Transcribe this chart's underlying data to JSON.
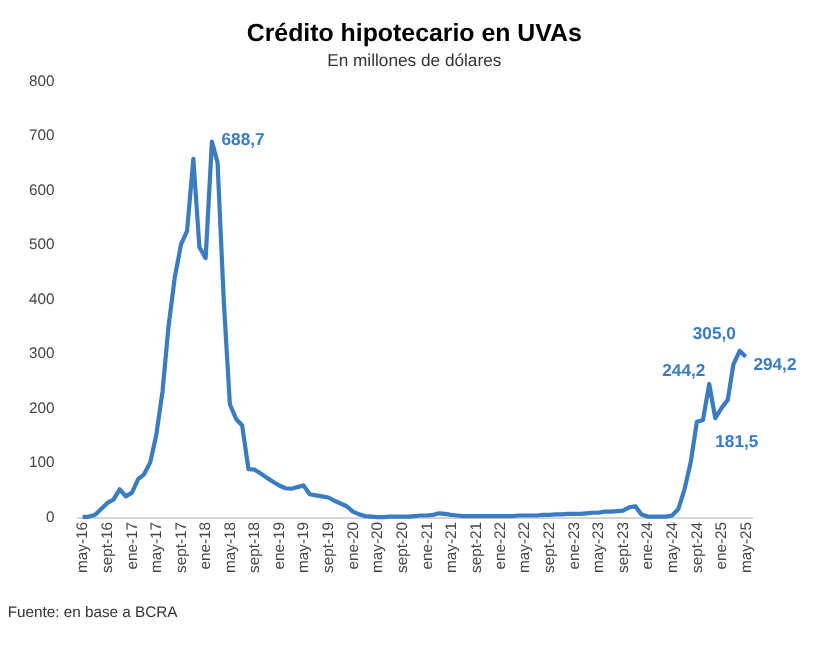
{
  "chart_data": {
    "type": "line",
    "title": "Crédito hipotecario en UVAs",
    "subtitle": "En millones de dólares",
    "x": [
      "2016-05",
      "2016-06",
      "2016-07",
      "2016-08",
      "2016-09",
      "2016-10",
      "2016-11",
      "2016-12",
      "2017-01",
      "2017-02",
      "2017-03",
      "2017-04",
      "2017-05",
      "2017-06",
      "2017-07",
      "2017-08",
      "2017-09",
      "2017-10",
      "2017-11",
      "2017-12",
      "2018-01",
      "2018-02",
      "2018-03",
      "2018-04",
      "2018-05",
      "2018-06",
      "2018-07",
      "2018-08",
      "2018-09",
      "2018-10",
      "2018-11",
      "2018-12",
      "2019-01",
      "2019-02",
      "2019-03",
      "2019-04",
      "2019-05",
      "2019-06",
      "2019-07",
      "2019-08",
      "2019-09",
      "2019-10",
      "2019-11",
      "2019-12",
      "2020-01",
      "2020-02",
      "2020-03",
      "2020-04",
      "2020-05",
      "2020-06",
      "2020-07",
      "2020-08",
      "2020-09",
      "2020-10",
      "2020-11",
      "2020-12",
      "2021-01",
      "2021-02",
      "2021-03",
      "2021-04",
      "2021-05",
      "2021-06",
      "2021-07",
      "2021-08",
      "2021-09",
      "2021-10",
      "2021-11",
      "2021-12",
      "2022-01",
      "2022-02",
      "2022-03",
      "2022-04",
      "2022-05",
      "2022-06",
      "2022-07",
      "2022-08",
      "2022-09",
      "2022-10",
      "2022-11",
      "2022-12",
      "2023-01",
      "2023-02",
      "2023-03",
      "2023-04",
      "2023-05",
      "2023-06",
      "2023-07",
      "2023-08",
      "2023-09",
      "2023-10",
      "2023-11",
      "2023-12",
      "2024-01",
      "2024-02",
      "2024-03",
      "2024-04",
      "2024-05",
      "2024-06",
      "2024-07",
      "2024-08",
      "2024-09",
      "2024-10",
      "2024-11",
      "2024-12",
      "2025-01",
      "2025-02",
      "2025-03",
      "2025-04",
      "2025-05"
    ],
    "series": [
      {
        "color": "#3a7cc4",
        "values": [
          0,
          1,
          4,
          15,
          26,
          32,
          51,
          38,
          45,
          70,
          78,
          100,
          150,
          230,
          350,
          440,
          500,
          525,
          657,
          495,
          475,
          688.7,
          650,
          395,
          207,
          180,
          168,
          88,
          87,
          80,
          72,
          65,
          58,
          53,
          52,
          55,
          58,
          42,
          40,
          38,
          36,
          30,
          25,
          20,
          10,
          5,
          2,
          1,
          0,
          0,
          1,
          1,
          1,
          1,
          2,
          3,
          3,
          4,
          7,
          6,
          4,
          3,
          2,
          2,
          2,
          2,
          2,
          2,
          2,
          2,
          2,
          3,
          3,
          3,
          3,
          4,
          4,
          5,
          5,
          6,
          6,
          6,
          7,
          8,
          8,
          10,
          10,
          11,
          12,
          18,
          20,
          5,
          1,
          1,
          1,
          1,
          3,
          15,
          50,
          100,
          175,
          178,
          244.2,
          181.5,
          200,
          215,
          280,
          305.0,
          294.2
        ]
      }
    ],
    "xlim": [
      "2016-04",
      "2025-06"
    ],
    "xticks": [
      {
        "value": "2016-05",
        "label": "may-16"
      },
      {
        "value": "2016-09",
        "label": "sept-16"
      },
      {
        "value": "2017-01",
        "label": "ene-17"
      },
      {
        "value": "2017-05",
        "label": "may-17"
      },
      {
        "value": "2017-09",
        "label": "sept-17"
      },
      {
        "value": "2018-01",
        "label": "ene-18"
      },
      {
        "value": "2018-05",
        "label": "may-18"
      },
      {
        "value": "2018-09",
        "label": "sept-18"
      },
      {
        "value": "2019-01",
        "label": "ene-19"
      },
      {
        "value": "2019-05",
        "label": "may-19"
      },
      {
        "value": "2019-09",
        "label": "sept-19"
      },
      {
        "value": "2020-01",
        "label": "ene-20"
      },
      {
        "value": "2020-05",
        "label": "may-20"
      },
      {
        "value": "2020-09",
        "label": "sept-20"
      },
      {
        "value": "2021-01",
        "label": "ene-21"
      },
      {
        "value": "2021-05",
        "label": "may-21"
      },
      {
        "value": "2021-09",
        "label": "sept-21"
      },
      {
        "value": "2022-01",
        "label": "ene-22"
      },
      {
        "value": "2022-05",
        "label": "may-22"
      },
      {
        "value": "2022-09",
        "label": "sept-22"
      },
      {
        "value": "2023-01",
        "label": "ene-23"
      },
      {
        "value": "2023-05",
        "label": "may-23"
      },
      {
        "value": "2023-09",
        "label": "sept-23"
      },
      {
        "value": "2024-01",
        "label": "ene-24"
      },
      {
        "value": "2024-05",
        "label": "may-24"
      },
      {
        "value": "2024-09",
        "label": "sept-24"
      },
      {
        "value": "2025-01",
        "label": "ene-25"
      },
      {
        "value": "2025-05",
        "label": "may-25"
      }
    ],
    "ylim": [
      0,
      800
    ],
    "yticks": [
      0,
      100,
      200,
      300,
      400,
      500,
      600,
      700,
      800
    ],
    "grid": false,
    "legend": false,
    "marker": "none",
    "line_style": "solid",
    "annotations": [
      {
        "text": "688,7",
        "x": "2018-02",
        "y": 688.7
      },
      {
        "text": "244,2",
        "x": "2024-11",
        "y": 244.2
      },
      {
        "text": "181,5",
        "x": "2024-12",
        "y": 181.5
      },
      {
        "text": "305,0",
        "x": "2025-04",
        "y": 305.0
      },
      {
        "text": "294,2",
        "x": "2025-05",
        "y": 294.2
      },
      "Fuente: en base a BCRA"
    ]
  }
}
